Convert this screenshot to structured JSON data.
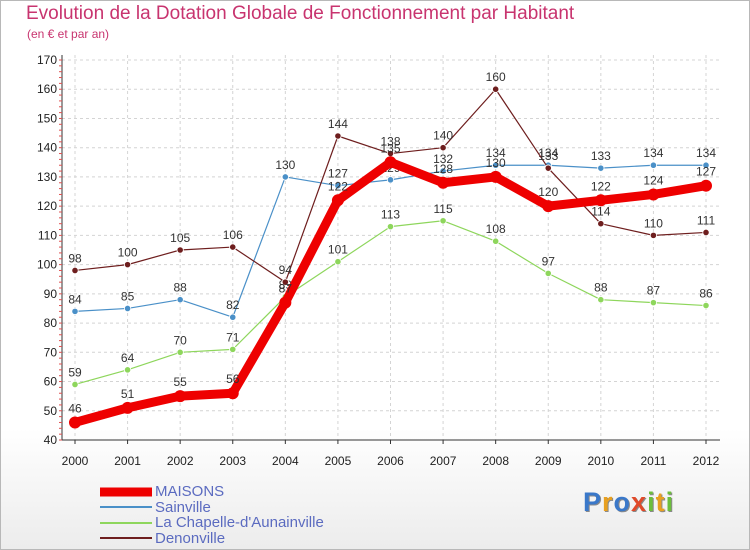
{
  "title": "Evolution de la Dotation Globale de Fonctionnement par Habitant",
  "subtitle": "(en € et par an)",
  "logo": {
    "text": "Proxiti",
    "letters": [
      {
        "char": "P",
        "color": "#3a78c9"
      },
      {
        "char": "r",
        "color": "#e8a020"
      },
      {
        "char": "o",
        "color": "#3a78c9"
      },
      {
        "char": "x",
        "color": "#e04a2a"
      },
      {
        "char": "i",
        "color": "#6cbe3c"
      },
      {
        "char": "t",
        "color": "#e8a020"
      },
      {
        "char": "i",
        "color": "#6cbe3c"
      }
    ]
  },
  "chart_data": {
    "type": "line",
    "title": "Evolution de la Dotation Globale de Fonctionnement par Habitant",
    "subtitle": "(en € et par an)",
    "xlabel": "",
    "ylabel": "",
    "categories": [
      "2000",
      "2001",
      "2002",
      "2003",
      "2004",
      "2005",
      "2006",
      "2007",
      "2008",
      "2009",
      "2010",
      "2011",
      "2012"
    ],
    "ylim": [
      40,
      170
    ],
    "yticks": [
      40,
      50,
      60,
      70,
      80,
      90,
      100,
      110,
      120,
      130,
      140,
      150,
      160,
      170
    ],
    "grid": true,
    "legend_position": "bottom-left",
    "series": [
      {
        "name": "Sainville",
        "color": "#4a90c8",
        "values": [
          84,
          85,
          88,
          82,
          130,
          127,
          129,
          132,
          134,
          134,
          133,
          134,
          134
        ],
        "labels": [
          "84",
          "85",
          "88",
          "82",
          "130",
          "127",
          "129",
          "132",
          "134",
          "134",
          "133",
          "134",
          "134"
        ]
      },
      {
        "name": "La Chapelle-d'Aunainville",
        "color": "#8ed65c",
        "values": [
          59,
          64,
          70,
          71,
          89,
          101,
          113,
          115,
          108,
          97,
          88,
          87,
          86
        ],
        "labels": [
          "59",
          "64",
          "70",
          "71",
          "89",
          "101",
          "113",
          "115",
          "108",
          "97",
          "88",
          "87",
          "86"
        ]
      },
      {
        "name": "Denonville",
        "color": "#6e1e1e",
        "values": [
          98,
          100,
          105,
          106,
          94,
          144,
          138,
          140,
          160,
          133,
          114,
          110,
          111
        ],
        "labels": [
          "98",
          "100",
          "105",
          "106",
          "94",
          "144",
          "138",
          "140",
          "160",
          "133",
          "114",
          "110",
          "111"
        ]
      },
      {
        "name": "MAISONS",
        "color": "#ee0000",
        "values": [
          46,
          51,
          55,
          56,
          87,
          122,
          135,
          128,
          130,
          120,
          122,
          124,
          127
        ],
        "labels": [
          "46",
          "51",
          "55",
          "56",
          "87",
          "122",
          "135",
          "128",
          "130",
          "120",
          "122",
          "124",
          "127"
        ]
      }
    ]
  },
  "legend": {
    "items": [
      {
        "label": "MAISONS",
        "color": "#ee0000"
      },
      {
        "label": "Sainville",
        "color": "#4a90c8"
      },
      {
        "label": "La Chapelle-d'Aunainville",
        "color": "#8ed65c"
      },
      {
        "label": "Denonville",
        "color": "#6e1e1e"
      }
    ]
  }
}
